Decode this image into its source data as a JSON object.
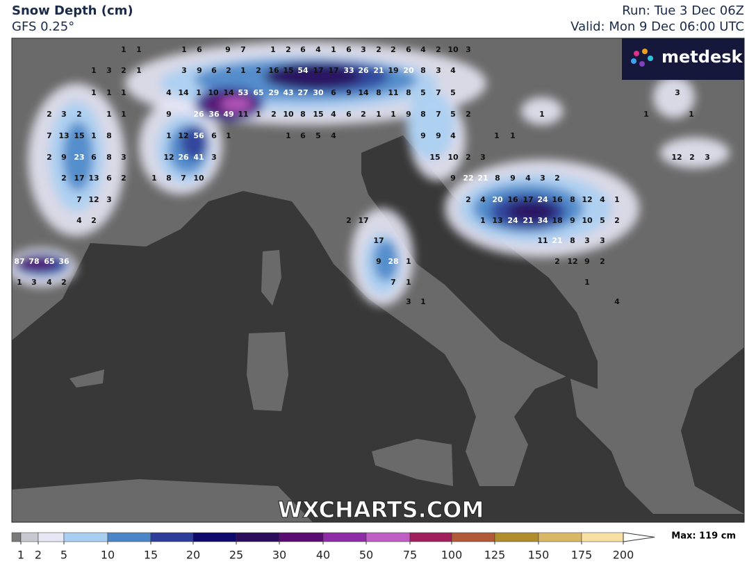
{
  "header": {
    "title": "Snow Depth (cm)",
    "model": "GFS 0.25°",
    "run": "Run: Tue 3 Dec 06Z",
    "valid": "Valid: Mon 9 Dec 06:00 UTC"
  },
  "logo": "metdesk",
  "watermark": "WXCHARTS.COM",
  "map": {
    "labels": [
      1,
      1,
      1,
      6,
      9,
      7,
      1,
      2,
      6,
      4,
      1,
      6,
      3,
      2,
      2,
      6,
      4,
      2,
      10,
      3,
      1,
      3,
      2,
      1,
      3,
      9,
      6,
      2,
      1,
      2,
      16,
      15,
      54,
      17,
      17,
      33,
      26,
      21,
      19,
      20,
      8,
      3,
      4,
      1,
      1,
      1,
      4,
      14,
      1,
      10,
      14,
      53,
      65,
      29,
      43,
      27,
      30,
      6,
      9,
      14,
      8,
      11,
      8,
      5,
      7,
      5,
      3,
      2,
      3,
      2,
      1,
      1,
      9,
      26,
      36,
      49,
      11,
      1,
      2,
      10,
      8,
      15,
      4,
      6,
      2,
      1,
      1,
      9,
      8,
      7,
      5,
      2,
      1,
      1,
      1,
      7,
      13,
      15,
      1,
      8,
      1,
      12,
      56,
      6,
      1,
      1,
      6,
      5,
      4,
      9,
      9,
      4,
      1,
      1,
      2,
      9,
      23,
      6,
      8,
      3,
      12,
      26,
      41,
      3,
      15,
      10,
      2,
      3,
      12,
      2,
      3,
      2,
      17,
      13,
      6,
      2,
      1,
      8,
      7,
      10,
      9,
      22,
      21,
      8,
      9,
      4,
      3,
      2,
      7,
      12,
      3,
      2,
      4,
      20,
      16,
      17,
      24,
      16,
      8,
      12,
      4,
      1,
      4,
      2,
      2,
      17,
      1,
      13,
      24,
      21,
      34,
      18,
      9,
      10,
      5,
      2,
      17,
      11,
      21,
      8,
      3,
      3,
      87,
      78,
      65,
      36,
      9,
      28,
      1,
      2,
      12,
      9,
      2,
      1,
      3,
      4,
      2,
      7,
      1,
      1,
      3,
      1,
      4
    ]
  },
  "legend": {
    "ticks": [
      1,
      2,
      5,
      10,
      15,
      20,
      25,
      30,
      40,
      50,
      75,
      100,
      125,
      150,
      175,
      200
    ],
    "colors": [
      "#7a7a7a",
      "#c8c8d0",
      "#e6e6f4",
      "#a8cef2",
      "#4a86c8",
      "#2c3e98",
      "#0e0a6c",
      "#2c0c5c",
      "#5a0c70",
      "#8e2ca8",
      "#c060c4",
      "#a0205e",
      "#b05a3a",
      "#b08e2e",
      "#d8b866",
      "#f8e0a2"
    ],
    "max_label": "Max: 119 cm"
  }
}
